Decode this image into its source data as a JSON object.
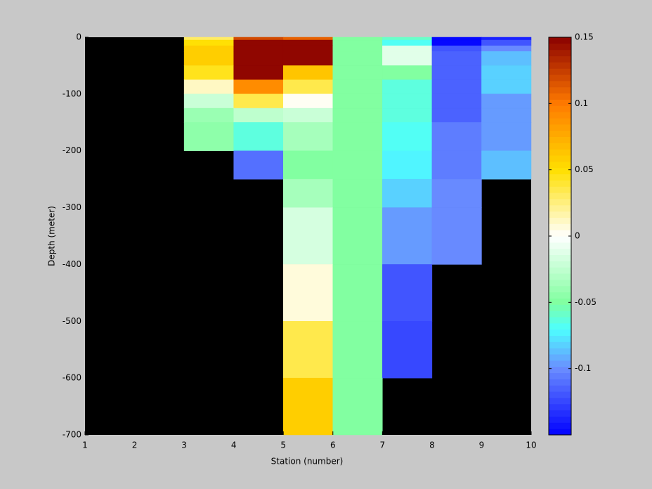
{
  "chart_data": {
    "type": "heatmap",
    "xlabel": "Station (number)",
    "ylabel": "Depth (meter)",
    "x": [
      1,
      2,
      3,
      4,
      5,
      6,
      7,
      8,
      9,
      10
    ],
    "y": [
      0,
      -5,
      -15,
      -25,
      -50,
      -75,
      -100,
      -125,
      -150,
      -200,
      -250,
      -300,
      -400,
      -500,
      -600,
      -700
    ],
    "values": [
      [
        null,
        null,
        0.03,
        0.12,
        0.11,
        -0.048,
        -0.06,
        -0.15,
        -0.14
      ],
      [
        null,
        null,
        0.05,
        0.15,
        0.15,
        -0.048,
        -0.07,
        -0.15,
        -0.12
      ],
      [
        null,
        null,
        0.06,
        0.15,
        0.15,
        -0.048,
        -0.01,
        -0.12,
        -0.1
      ],
      [
        null,
        null,
        0.06,
        0.15,
        0.15,
        -0.048,
        -0.01,
        -0.115,
        -0.085
      ],
      [
        null,
        null,
        0.045,
        0.15,
        0.065,
        -0.048,
        -0.05,
        -0.115,
        -0.08
      ],
      [
        null,
        null,
        0.01,
        0.09,
        0.035,
        -0.048,
        -0.065,
        -0.115,
        -0.08
      ],
      [
        null,
        null,
        -0.02,
        0.035,
        0.0,
        -0.048,
        -0.065,
        -0.115,
        -0.095
      ],
      [
        null,
        null,
        -0.04,
        -0.025,
        -0.02,
        -0.048,
        -0.065,
        -0.115,
        -0.095
      ],
      [
        null,
        null,
        -0.045,
        -0.065,
        -0.035,
        -0.048,
        -0.07,
        -0.105,
        -0.095
      ],
      [
        null,
        null,
        null,
        -0.11,
        -0.05,
        -0.048,
        -0.075,
        -0.105,
        -0.085
      ],
      [
        null,
        null,
        null,
        null,
        -0.035,
        -0.048,
        -0.08,
        -0.1,
        null
      ],
      [
        null,
        null,
        null,
        null,
        -0.015,
        -0.048,
        -0.095,
        -0.1,
        null
      ],
      [
        null,
        null,
        null,
        null,
        0.005,
        -0.048,
        -0.12,
        null,
        null
      ],
      [
        null,
        null,
        null,
        null,
        0.035,
        -0.048,
        -0.125,
        null,
        null
      ],
      [
        null,
        null,
        null,
        null,
        0.06,
        -0.048,
        null,
        null,
        null
      ]
    ],
    "nan_color": "#000000",
    "xlim": [
      1,
      10
    ],
    "xticks": [
      1,
      2,
      3,
      4,
      5,
      6,
      7,
      8,
      9,
      10
    ],
    "ylim": [
      -700,
      0
    ],
    "yticks": [
      -700,
      -600,
      -500,
      -400,
      -300,
      -200,
      -100,
      0
    ],
    "clim": [
      -0.15,
      0.15
    ],
    "cticks": [
      -0.1,
      -0.05,
      0,
      0.05,
      0.1,
      0.15
    ],
    "colormap": [
      {
        "value": -0.15,
        "color": "#0000ff"
      },
      {
        "value": -0.1,
        "color": "#6a8cff"
      },
      {
        "value": -0.07,
        "color": "#4dffff"
      },
      {
        "value": -0.05,
        "color": "#80ffa0"
      },
      {
        "value": 0,
        "color": "#ffffff"
      },
      {
        "value": 0.05,
        "color": "#ffe000"
      },
      {
        "value": 0.1,
        "color": "#ff7a00"
      },
      {
        "value": 0.15,
        "color": "#8b0000"
      }
    ]
  }
}
